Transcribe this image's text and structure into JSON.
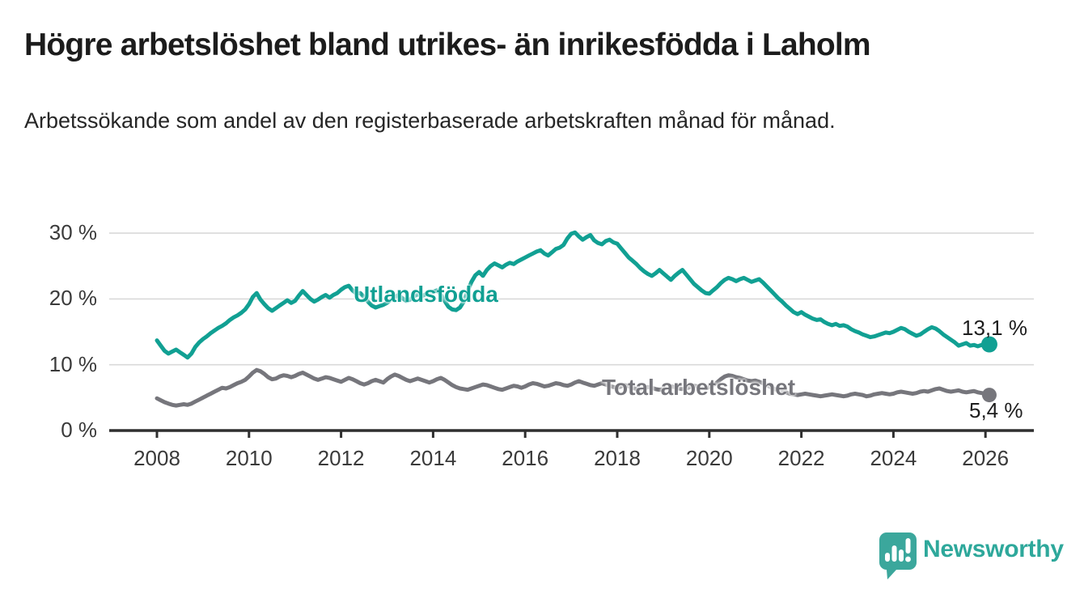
{
  "header": {
    "title": "Högre arbetslöshet bland utrikes- än inrikesfödda i Laholm",
    "subtitle": "Arbetssökande som andel av den registerbaserade arbetskraften månad för månad."
  },
  "branding": {
    "logo_text": "Newsworthy",
    "logo_icon": "newsworthy-speech-bubble-bar-chart-icon",
    "brand_color": "#2ea89b",
    "logo_bubble_color": "#3ba79c"
  },
  "colors": {
    "foreign_born_line": "#11a093",
    "total_line": "#76767c",
    "grid": "#d9d9d9",
    "axis": "#2f2f2f",
    "tick_text": "#3a3a3a",
    "text": "#1d1d1d"
  },
  "chart_data": {
    "type": "line",
    "title": "Högre arbetslöshet bland utrikes- än inrikesfödda i Laholm",
    "subtitle": "Arbetssökande som andel av den registerbaserade arbetskraften månad för månad.",
    "unit": "%",
    "x_start_year": 2008,
    "points_per_year": 12,
    "x_tick_years": [
      2008,
      2010,
      2012,
      2014,
      2016,
      2018,
      2020,
      2022,
      2024,
      2026
    ],
    "x_tick_labels": [
      "2008",
      "2010",
      "2012",
      "2014",
      "2016",
      "2018",
      "2020",
      "2022",
      "2024",
      "2026"
    ],
    "y_ticks": [
      0,
      10,
      20,
      30
    ],
    "y_tick_labels": [
      "0 %",
      "10 %",
      "20 %",
      "30 %"
    ],
    "ylim": [
      0,
      30
    ],
    "grid": "horizontal",
    "legend_position": "inline-labels",
    "series": [
      {
        "name": "Utlandsfödda",
        "color": "#11a093",
        "end_label": "13,1 %",
        "end_value": 13.1,
        "dot_radius": 10,
        "values": [
          13.7,
          12.9,
          12.1,
          11.7,
          12.0,
          12.3,
          11.9,
          11.5,
          11.1,
          11.7,
          12.7,
          13.4,
          13.9,
          14.3,
          14.8,
          15.2,
          15.6,
          15.9,
          16.3,
          16.8,
          17.2,
          17.5,
          17.9,
          18.4,
          19.2,
          20.3,
          20.9,
          19.9,
          19.2,
          18.6,
          18.2,
          18.6,
          19.0,
          19.4,
          19.8,
          19.4,
          19.7,
          20.5,
          21.2,
          20.6,
          20.0,
          19.6,
          19.9,
          20.3,
          20.6,
          20.2,
          20.6,
          20.9,
          21.4,
          21.8,
          22.0,
          21.3,
          20.8,
          20.9,
          20.3,
          19.6,
          19.0,
          18.7,
          18.9,
          19.1,
          19.4,
          19.9,
          20.3,
          20.6,
          20.1,
          19.7,
          19.9,
          20.4,
          20.7,
          20.4,
          20.7,
          21.0,
          21.1,
          21.3,
          20.7,
          19.7,
          18.8,
          18.4,
          18.3,
          18.7,
          19.6,
          21.2,
          22.6,
          23.6,
          24.1,
          23.5,
          24.4,
          25.0,
          25.4,
          25.1,
          24.8,
          25.2,
          25.5,
          25.3,
          25.7,
          26.0,
          26.3,
          26.6,
          26.9,
          27.2,
          27.4,
          26.9,
          26.6,
          27.1,
          27.6,
          27.8,
          28.2,
          29.2,
          29.9,
          30.1,
          29.5,
          29.0,
          29.4,
          29.7,
          28.9,
          28.5,
          28.3,
          28.8,
          29.0,
          28.6,
          28.4,
          27.7,
          27.0,
          26.3,
          25.8,
          25.3,
          24.7,
          24.2,
          23.8,
          23.5,
          23.9,
          24.4,
          23.9,
          23.4,
          22.9,
          23.5,
          24.0,
          24.4,
          23.7,
          23.0,
          22.3,
          21.8,
          21.3,
          20.9,
          20.8,
          21.3,
          21.8,
          22.4,
          22.9,
          23.2,
          23.0,
          22.7,
          23.0,
          23.2,
          22.9,
          22.6,
          22.8,
          23.0,
          22.5,
          21.9,
          21.3,
          20.7,
          20.1,
          19.6,
          19.0,
          18.5,
          18.0,
          17.7,
          18.0,
          17.6,
          17.3,
          17.0,
          16.8,
          16.9,
          16.5,
          16.2,
          16.0,
          16.2,
          15.9,
          16.0,
          15.8,
          15.4,
          15.1,
          14.9,
          14.6,
          14.4,
          14.2,
          14.3,
          14.5,
          14.7,
          14.9,
          14.8,
          15.0,
          15.3,
          15.6,
          15.4,
          15.0,
          14.7,
          14.4,
          14.6,
          15.0,
          15.4,
          15.7,
          15.5,
          15.1,
          14.6,
          14.2,
          13.8,
          13.4,
          12.9,
          13.1,
          13.3,
          12.9,
          13.0,
          12.8,
          13.0,
          12.9,
          13.1
        ]
      },
      {
        "name": "Total arbetslöshet",
        "color": "#76767c",
        "end_label": "5,4 %",
        "end_value": 5.4,
        "dot_radius": 9,
        "values": [
          4.9,
          4.6,
          4.3,
          4.1,
          3.9,
          3.8,
          3.9,
          4.0,
          3.9,
          4.1,
          4.4,
          4.7,
          5.0,
          5.3,
          5.6,
          5.9,
          6.2,
          6.5,
          6.4,
          6.6,
          6.9,
          7.2,
          7.4,
          7.7,
          8.2,
          8.8,
          9.2,
          9.0,
          8.6,
          8.1,
          7.8,
          7.9,
          8.2,
          8.4,
          8.3,
          8.1,
          8.3,
          8.6,
          8.8,
          8.5,
          8.2,
          7.9,
          7.7,
          7.9,
          8.1,
          8.0,
          7.8,
          7.6,
          7.4,
          7.7,
          8.0,
          7.8,
          7.5,
          7.2,
          7.0,
          7.2,
          7.5,
          7.7,
          7.5,
          7.3,
          7.8,
          8.2,
          8.5,
          8.3,
          8.0,
          7.7,
          7.5,
          7.7,
          7.9,
          7.7,
          7.5,
          7.3,
          7.5,
          7.8,
          8.0,
          7.7,
          7.3,
          6.9,
          6.6,
          6.4,
          6.3,
          6.2,
          6.4,
          6.6,
          6.8,
          7.0,
          6.9,
          6.7,
          6.5,
          6.3,
          6.2,
          6.4,
          6.6,
          6.8,
          6.7,
          6.5,
          6.7,
          7.0,
          7.2,
          7.1,
          6.9,
          6.7,
          6.8,
          7.0,
          7.2,
          7.1,
          6.9,
          6.8,
          7.0,
          7.3,
          7.5,
          7.3,
          7.1,
          6.9,
          6.8,
          7.0,
          7.2,
          7.0,
          6.8,
          6.6,
          6.5,
          6.7,
          6.9,
          6.7,
          6.5,
          6.3,
          6.2,
          6.4,
          6.6,
          6.5,
          6.3,
          6.2,
          6.3,
          6.5,
          6.7,
          6.6,
          6.4,
          6.3,
          6.4,
          6.6,
          6.8,
          6.7,
          6.5,
          6.4,
          6.6,
          6.9,
          7.3,
          7.8,
          8.2,
          8.4,
          8.3,
          8.1,
          8.0,
          7.8,
          7.6,
          7.5,
          7.6,
          7.4,
          7.2,
          6.9,
          6.6,
          6.3,
          6.1,
          5.9,
          5.8,
          5.6,
          5.5,
          5.4,
          5.5,
          5.6,
          5.5,
          5.4,
          5.3,
          5.2,
          5.3,
          5.4,
          5.5,
          5.4,
          5.3,
          5.2,
          5.3,
          5.5,
          5.6,
          5.5,
          5.4,
          5.2,
          5.3,
          5.5,
          5.6,
          5.7,
          5.6,
          5.5,
          5.6,
          5.8,
          5.9,
          5.8,
          5.7,
          5.6,
          5.7,
          5.9,
          6.0,
          5.9,
          6.1,
          6.3,
          6.4,
          6.2,
          6.0,
          5.9,
          6.0,
          6.1,
          5.9,
          5.8,
          5.9,
          6.0,
          5.8,
          5.7,
          5.6,
          5.4
        ]
      }
    ]
  }
}
